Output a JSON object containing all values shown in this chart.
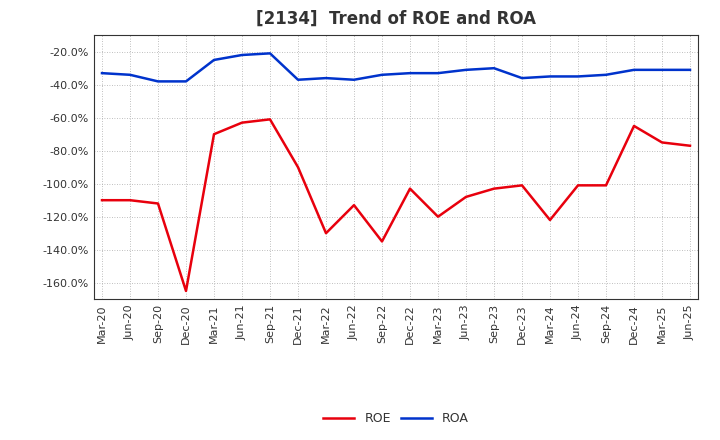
{
  "title": "[2134]  Trend of ROE and ROA",
  "roe_dates": [
    "Mar-20",
    "Jun-20",
    "Sep-20",
    "Dec-20",
    "Mar-21",
    "Jun-21",
    "Sep-21",
    "Dec-21",
    "Mar-22",
    "Jun-22",
    "Sep-22",
    "Dec-22",
    "Mar-23",
    "Jun-23",
    "Sep-23",
    "Dec-23",
    "Mar-24",
    "Jun-24",
    "Sep-24",
    "Dec-24",
    "Mar-25",
    "Jun-25"
  ],
  "roe_values": [
    -110,
    -110,
    -112,
    -165,
    -70,
    -63,
    -61,
    -90,
    -130,
    -113,
    -135,
    -103,
    -120,
    -108,
    -103,
    -101,
    -122,
    -101,
    -101,
    -65,
    -75,
    -77
  ],
  "roa_dates": [
    "Mar-20",
    "Jun-20",
    "Sep-20",
    "Dec-20",
    "Mar-21",
    "Jun-21",
    "Sep-21",
    "Dec-21",
    "Mar-22",
    "Jun-22",
    "Sep-22",
    "Dec-22",
    "Mar-23",
    "Jun-23",
    "Sep-23",
    "Dec-23",
    "Mar-24",
    "Jun-24",
    "Sep-24",
    "Dec-24",
    "Mar-25",
    "Jun-25"
  ],
  "roa_values": [
    -33,
    -34,
    -38,
    -38,
    -25,
    -22,
    -21,
    -37,
    -36,
    -37,
    -34,
    -33,
    -33,
    -31,
    -30,
    -36,
    -35,
    -35,
    -34,
    -31,
    -31,
    -31
  ],
  "roe_color": "#e8000d",
  "roa_color": "#0033cc",
  "ylim_min": -170,
  "ylim_max": -10,
  "yticks": [
    -160,
    -140,
    -120,
    -100,
    -80,
    -60,
    -40,
    -20
  ],
  "background_color": "#ffffff",
  "plot_bg_color": "#ffffff",
  "grid_color": "#aaaaaa",
  "title_fontsize": 12,
  "title_color": "#333333",
  "tick_fontsize": 8,
  "legend_labels": [
    "ROE",
    "ROA"
  ],
  "line_width": 1.8
}
